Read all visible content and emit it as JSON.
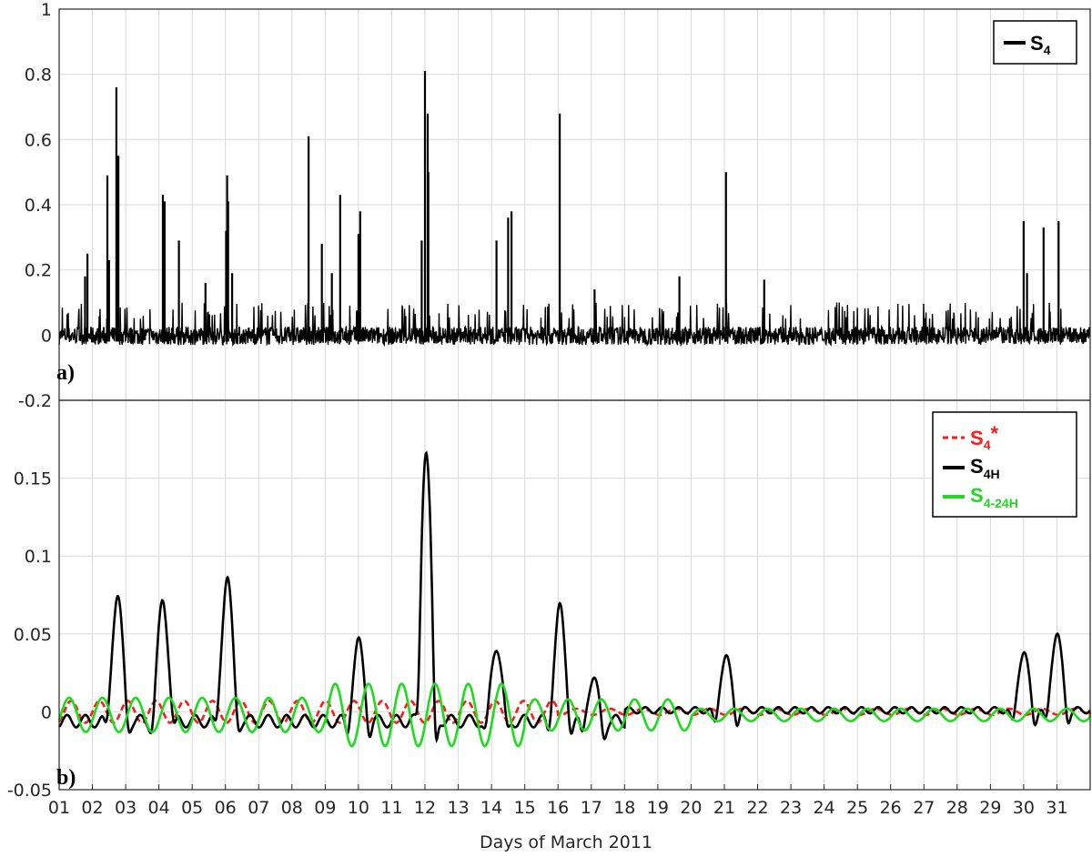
{
  "chart_data": [
    {
      "panel": "a)",
      "type": "line",
      "xlabel": "Days of March 2011",
      "ylabel": "",
      "xlim": [
        1,
        32
      ],
      "ylim": [
        -0.2,
        1
      ],
      "yticks": [
        "1",
        "0.8",
        "0.6",
        "0.4",
        "0.2",
        "0",
        "-0.2"
      ],
      "ytick_values": [
        1,
        0.8,
        0.6,
        0.4,
        0.2,
        0,
        -0.2
      ],
      "grid": true,
      "legend_position": "top-right",
      "series": [
        {
          "name": "S4",
          "name_main": "S",
          "name_sub": "4",
          "color": "#000000",
          "style": "solid",
          "baseline_range": [
            -0.03,
            0.05
          ],
          "spikes": [
            {
              "x": 1.85,
              "y": 0.25
            },
            {
              "x": 1.78,
              "y": 0.18
            },
            {
              "x": 2.45,
              "y": 0.49
            },
            {
              "x": 2.5,
              "y": 0.23
            },
            {
              "x": 2.72,
              "y": 0.76
            },
            {
              "x": 2.78,
              "y": 0.55
            },
            {
              "x": 4.12,
              "y": 0.43
            },
            {
              "x": 4.17,
              "y": 0.41
            },
            {
              "x": 4.6,
              "y": 0.29
            },
            {
              "x": 5.4,
              "y": 0.16
            },
            {
              "x": 6.05,
              "y": 0.49
            },
            {
              "x": 6.08,
              "y": 0.41
            },
            {
              "x": 6.02,
              "y": 0.32
            },
            {
              "x": 6.2,
              "y": 0.19
            },
            {
              "x": 8.5,
              "y": 0.61
            },
            {
              "x": 8.9,
              "y": 0.28
            },
            {
              "x": 9.2,
              "y": 0.19
            },
            {
              "x": 9.45,
              "y": 0.43
            },
            {
              "x": 10.0,
              "y": 0.31
            },
            {
              "x": 10.05,
              "y": 0.38
            },
            {
              "x": 11.9,
              "y": 0.29
            },
            {
              "x": 12.0,
              "y": 0.81
            },
            {
              "x": 12.08,
              "y": 0.68
            },
            {
              "x": 12.1,
              "y": 0.5
            },
            {
              "x": 14.15,
              "y": 0.29
            },
            {
              "x": 14.5,
              "y": 0.36
            },
            {
              "x": 14.6,
              "y": 0.38
            },
            {
              "x": 16.05,
              "y": 0.68
            },
            {
              "x": 17.1,
              "y": 0.14
            },
            {
              "x": 19.65,
              "y": 0.18
            },
            {
              "x": 21.05,
              "y": 0.5
            },
            {
              "x": 22.2,
              "y": 0.17
            },
            {
              "x": 30.0,
              "y": 0.35
            },
            {
              "x": 30.1,
              "y": 0.19
            },
            {
              "x": 30.6,
              "y": 0.33
            },
            {
              "x": 31.05,
              "y": 0.35
            }
          ]
        }
      ]
    },
    {
      "panel": "b)",
      "type": "line",
      "xlabel": "Days of March 2011",
      "ylabel": "",
      "xlim": [
        1,
        32
      ],
      "ylim": [
        -0.05,
        0.2
      ],
      "yticks": [
        "0.15",
        "0.1",
        "0.05",
        "0",
        "-0.05"
      ],
      "ytick_values": [
        0.15,
        0.1,
        0.05,
        0,
        -0.05
      ],
      "xticks": [
        "01",
        "02",
        "03",
        "04",
        "05",
        "06",
        "07",
        "08",
        "09",
        "10",
        "11",
        "12",
        "13",
        "14",
        "15",
        "16",
        "17",
        "18",
        "19",
        "20",
        "21",
        "22",
        "23",
        "24",
        "25",
        "26",
        "27",
        "28",
        "29",
        "30",
        "31"
      ],
      "grid": true,
      "legend_position": "top-right",
      "series": [
        {
          "name": "S4*",
          "name_main": "S",
          "name_sub": "4",
          "name_sup": "*",
          "color": "#ff1a1a",
          "style": "dashed",
          "waves": [
            {
              "x_from": 1,
              "x_to": 16,
              "amp": 0.007,
              "period": 0.85
            },
            {
              "x_from": 16,
              "x_to": 32,
              "amp": 0.002,
              "period": 1.0
            }
          ]
        },
        {
          "name": "S4H",
          "name_main": "S",
          "name_sub": "4H",
          "color": "#000000",
          "style": "solid",
          "peaks": [
            {
              "x": 2.75,
              "y": 0.068
            },
            {
              "x": 4.12,
              "y": 0.065
            },
            {
              "x": 6.05,
              "y": 0.08
            },
            {
              "x": 10.0,
              "y": 0.038
            },
            {
              "x": 12.03,
              "y": 0.163
            },
            {
              "x": 14.15,
              "y": 0.037
            },
            {
              "x": 16.05,
              "y": 0.06
            },
            {
              "x": 17.05,
              "y": 0.015
            },
            {
              "x": 21.05,
              "y": 0.022
            },
            {
              "x": 30.0,
              "y": 0.025
            },
            {
              "x": 31.0,
              "y": 0.037
            }
          ],
          "troughs": [
            {
              "x": 11.8,
              "y": -0.04
            },
            {
              "x": 12.3,
              "y": -0.04
            }
          ]
        },
        {
          "name": "S4-24H",
          "name_main": "S",
          "name_sub": "4-24H",
          "color": "#1ddb1d",
          "style": "solid",
          "waves": [
            {
              "x_from": 1,
              "x_to": 9,
              "amp": 0.011,
              "period": 1.0
            },
            {
              "x_from": 9,
              "x_to": 15,
              "amp": 0.02,
              "period": 1.0
            },
            {
              "x_from": 15,
              "x_to": 20,
              "amp": 0.01,
              "period": 1.0
            },
            {
              "x_from": 20,
              "x_to": 32,
              "amp": 0.004,
              "period": 1.0
            }
          ]
        }
      ]
    }
  ],
  "labels": {
    "panel_a": "a)",
    "panel_b": "b)",
    "xlabel": "Days of March 2011"
  }
}
